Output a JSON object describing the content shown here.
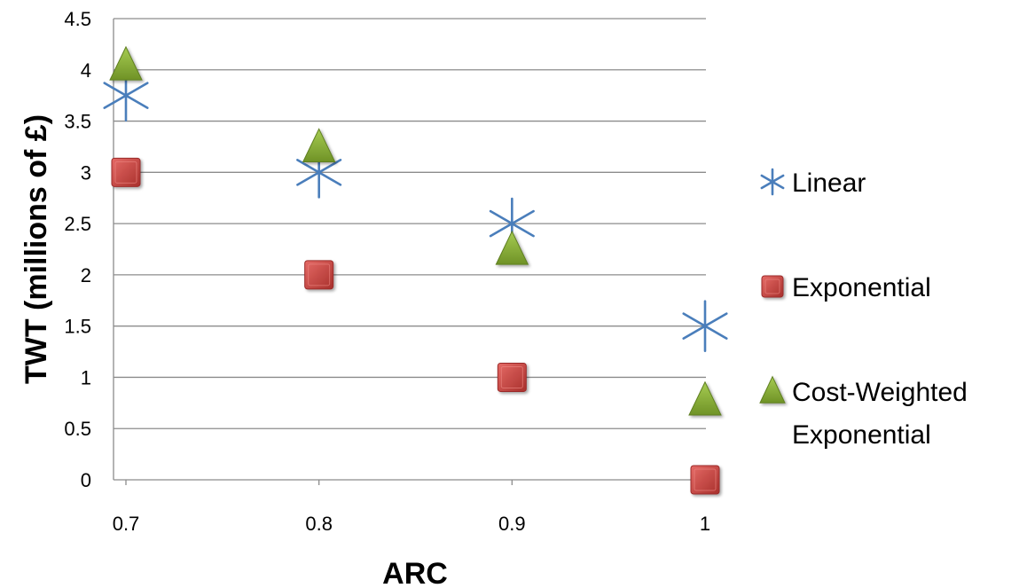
{
  "chart_data": {
    "type": "scatter",
    "title": "",
    "xlabel": "ARC",
    "ylabel": "TWT (millions of £)",
    "x": [
      0.7,
      0.8,
      0.9,
      1
    ],
    "x_tick_labels": [
      "0.7",
      "0.8",
      "0.9",
      "1"
    ],
    "y_ticks": [
      0,
      0.5,
      1,
      1.5,
      2,
      2.5,
      3,
      3.5,
      4,
      4.5
    ],
    "y_tick_labels": [
      "0",
      "0.5",
      "1",
      "1.5",
      "2",
      "2.5",
      "3",
      "3.5",
      "4",
      "4.5"
    ],
    "ylim": [
      0,
      4.5
    ],
    "grid": "horizontal",
    "legend_position": "right",
    "series": [
      {
        "name": "Linear",
        "marker": "star",
        "color": "#4a7ebb",
        "values": [
          3.75,
          3.0,
          2.5,
          1.5
        ]
      },
      {
        "name": "Exponential",
        "marker": "square",
        "color": "#c0504d",
        "values": [
          3.0,
          2.0,
          1.0,
          0.0
        ]
      },
      {
        "name": "Cost-Weighted Exponential",
        "marker": "triangle",
        "color": "#8db33b",
        "values": [
          4.05,
          3.25,
          2.25,
          0.78
        ]
      }
    ],
    "legend_lines": [
      [
        "Linear"
      ],
      [
        "Exponential"
      ],
      [
        "Cost-Weighted",
        "Exponential"
      ]
    ]
  }
}
